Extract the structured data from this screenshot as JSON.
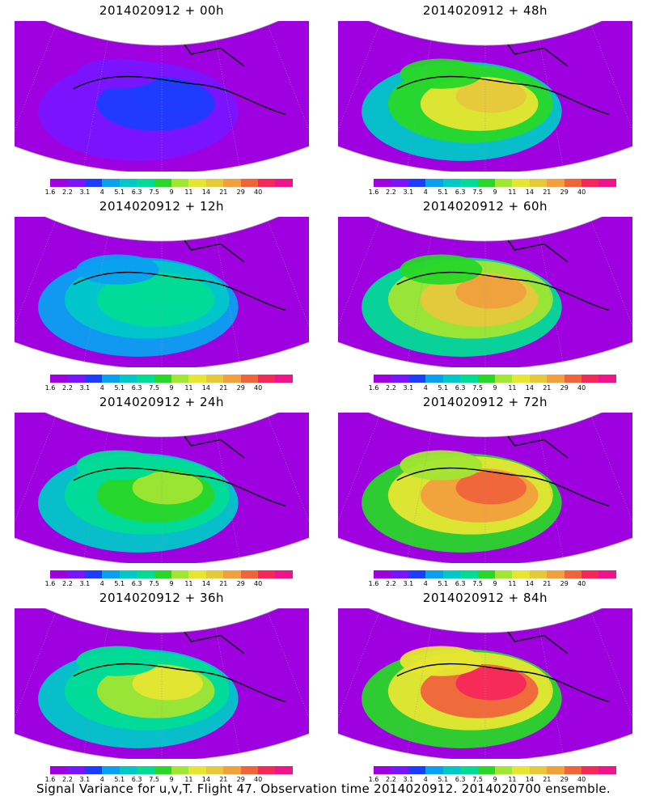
{
  "panels": [
    {
      "title": "2014020912 + 00h",
      "lead": "00h",
      "intensity": 0.15
    },
    {
      "title": "2014020912 + 48h",
      "lead": "48h",
      "intensity": 0.62
    },
    {
      "title": "2014020912 + 12h",
      "lead": "12h",
      "intensity": 0.38
    },
    {
      "title": "2014020912 + 60h",
      "lead": "60h",
      "intensity": 0.7
    },
    {
      "title": "2014020912 + 24h",
      "lead": "24h",
      "intensity": 0.5
    },
    {
      "title": "2014020912 + 72h",
      "lead": "72h",
      "intensity": 0.78
    },
    {
      "title": "2014020912 + 36h",
      "lead": "36h",
      "intensity": 0.56
    },
    {
      "title": "2014020912 + 84h",
      "lead": "84h",
      "intensity": 0.86
    }
  ],
  "colorbar": {
    "tick_labels": [
      "1.6",
      "2.2",
      "3.1",
      "4",
      "5.1",
      "6.3",
      "7.5",
      "9",
      "11",
      "14",
      "21",
      "29",
      "40"
    ],
    "colors": [
      "#9f00df",
      "#7a14ff",
      "#1e3cff",
      "#0aa0f0",
      "#00c8c8",
      "#00dc96",
      "#28d728",
      "#a0e632",
      "#e6e632",
      "#e6c83c",
      "#f0a03c",
      "#f0643c",
      "#f5285a",
      "#f0148c"
    ]
  },
  "caption": "Signal Variance for u,v,T. Flight 47. Observation time 2014020912. 2014020700 ensemble."
}
